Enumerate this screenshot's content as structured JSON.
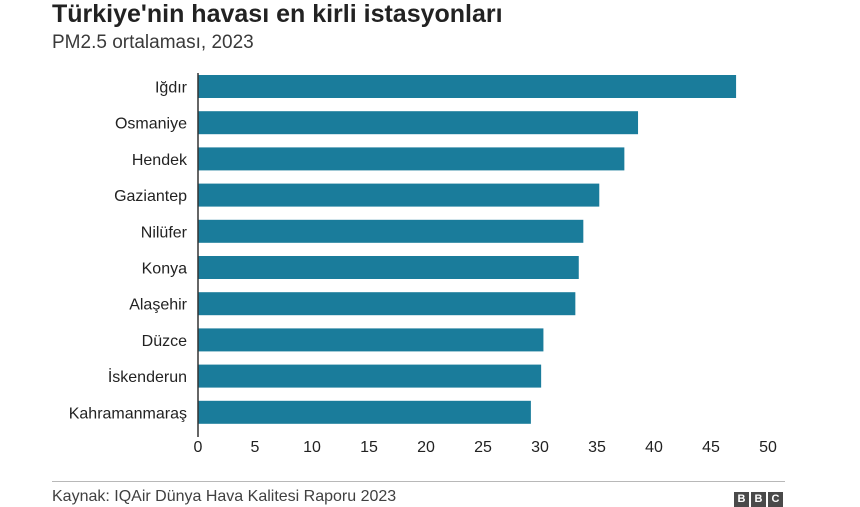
{
  "header": {
    "title": "Türkiye'nin havası en kirli istasyonları",
    "subtitle": "PM2.5 ortalaması, 2023"
  },
  "footer": {
    "source": "Kaynak: IQAir Dünya Hava Kalitesi Raporu 2023",
    "logo_letters": [
      "B",
      "B",
      "C"
    ]
  },
  "colors": {
    "bar": "#1a7c9b",
    "axis": "#333333",
    "text": "#222222"
  },
  "chart_data": {
    "type": "bar",
    "orientation": "horizontal",
    "title": "Türkiye'nin havası en kirli istasyonları",
    "subtitle": "PM2.5 ortalaması, 2023",
    "categories": [
      "Iğdır",
      "Osmaniye",
      "Hendek",
      "Gaziantep",
      "Nilüfer",
      "Konya",
      "Alaşehir",
      "Düzce",
      "İskenderun",
      "Kahramanmaraş"
    ],
    "values": [
      47.2,
      38.6,
      37.4,
      35.2,
      33.8,
      33.4,
      33.1,
      30.3,
      30.1,
      29.2
    ],
    "xlim": [
      0,
      50
    ],
    "xticks": [
      0,
      5,
      10,
      15,
      20,
      25,
      30,
      35,
      40,
      45,
      50
    ],
    "grid": false,
    "legend": "none"
  }
}
